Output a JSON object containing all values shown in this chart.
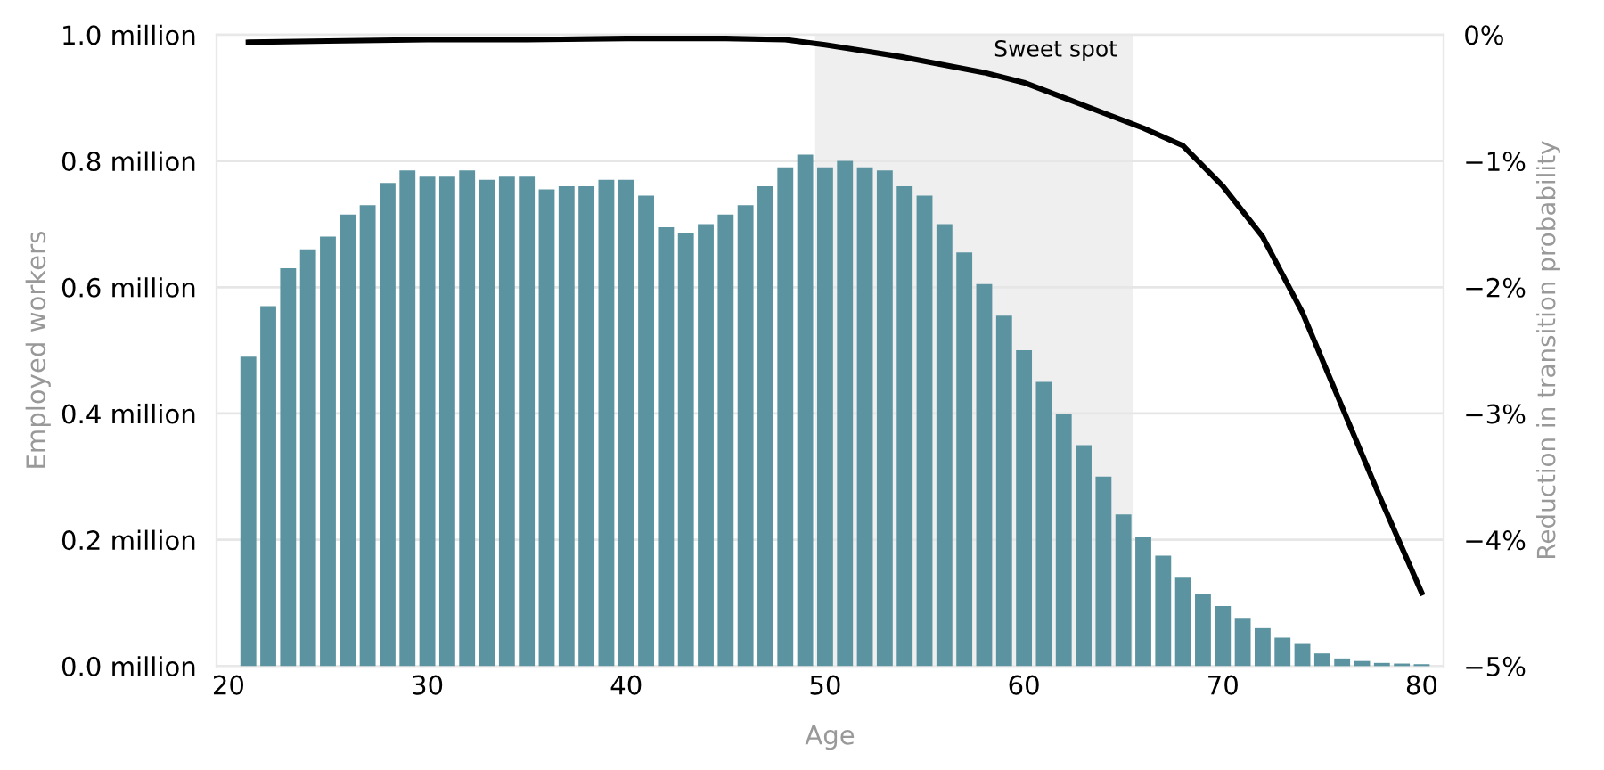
{
  "chart_data": {
    "type": "bar",
    "xlabel": "Age",
    "ylabel": "Employed workers",
    "y2label": "Reduction in transition probability",
    "series": [
      {
        "color": "#5b94a0",
        "axis": "y",
        "x": [
          21,
          22,
          23,
          24,
          25,
          26,
          27,
          28,
          29,
          30,
          31,
          32,
          33,
          34,
          35,
          36,
          37,
          38,
          39,
          40,
          41,
          42,
          43,
          44,
          45,
          46,
          47,
          48,
          49,
          50,
          51,
          52,
          53,
          54,
          55,
          56,
          57,
          58,
          59,
          60,
          61,
          62,
          63,
          64,
          65,
          66,
          67,
          68,
          69,
          70,
          71,
          72,
          73,
          74,
          75,
          76,
          77,
          78,
          79,
          80
        ],
        "values": [
          0.49,
          0.57,
          0.63,
          0.66,
          0.68,
          0.715,
          0.73,
          0.765,
          0.785,
          0.775,
          0.775,
          0.785,
          0.77,
          0.775,
          0.775,
          0.755,
          0.76,
          0.76,
          0.77,
          0.77,
          0.745,
          0.695,
          0.685,
          0.7,
          0.715,
          0.73,
          0.76,
          0.79,
          0.81,
          0.79,
          0.8,
          0.79,
          0.785,
          0.76,
          0.745,
          0.7,
          0.655,
          0.605,
          0.555,
          0.5,
          0.45,
          0.4,
          0.35,
          0.3,
          0.24,
          0.205,
          0.175,
          0.14,
          0.115,
          0.095,
          0.075,
          0.06,
          0.045,
          0.035,
          0.02,
          0.012,
          0.008,
          0.005,
          0.004,
          0.003
        ]
      },
      {
        "type": "line",
        "color": "#000000",
        "axis": "y2",
        "x": [
          21,
          25,
          30,
          35,
          40,
          45,
          48,
          50,
          52,
          54,
          56,
          58,
          60,
          62,
          64,
          66,
          68,
          70,
          72,
          74,
          76,
          78,
          80
        ],
        "values": [
          -0.06,
          -0.05,
          -0.04,
          -0.04,
          -0.03,
          -0.03,
          -0.04,
          -0.08,
          -0.13,
          -0.18,
          -0.24,
          -0.3,
          -0.38,
          -0.5,
          -0.62,
          -0.74,
          -0.88,
          -1.2,
          -1.6,
          -2.2,
          -2.95,
          -3.7,
          -4.42
        ]
      }
    ],
    "xlim": [
      19.4,
      81.1
    ],
    "xticks": [
      20,
      30,
      40,
      50,
      60,
      70,
      80
    ],
    "ylim": [
      0,
      1.0
    ],
    "yticks": [
      {
        "value": 0,
        "label": "0.0 million"
      },
      {
        "value": 0.2,
        "label": "0.2 million"
      },
      {
        "value": 0.4,
        "label": "0.4 million"
      },
      {
        "value": 0.6,
        "label": "0.6 million"
      },
      {
        "value": 0.8,
        "label": "0.8 million"
      },
      {
        "value": 1.0,
        "label": "1.0 million"
      }
    ],
    "y2lim": [
      -5,
      0
    ],
    "y2ticks": [
      {
        "value": 0,
        "label": "0%"
      },
      {
        "value": -1,
        "label": "−1%"
      },
      {
        "value": -2,
        "label": "−2%"
      },
      {
        "value": -3,
        "label": "−3%"
      },
      {
        "value": -4,
        "label": "−4%"
      },
      {
        "value": -5,
        "label": "−5%"
      }
    ],
    "bands": [
      {
        "axis": "x",
        "from": 49.5,
        "to": 65.5,
        "label": "Sweet spot",
        "color": "#efefef"
      }
    ],
    "grid": "y",
    "legend": false
  }
}
